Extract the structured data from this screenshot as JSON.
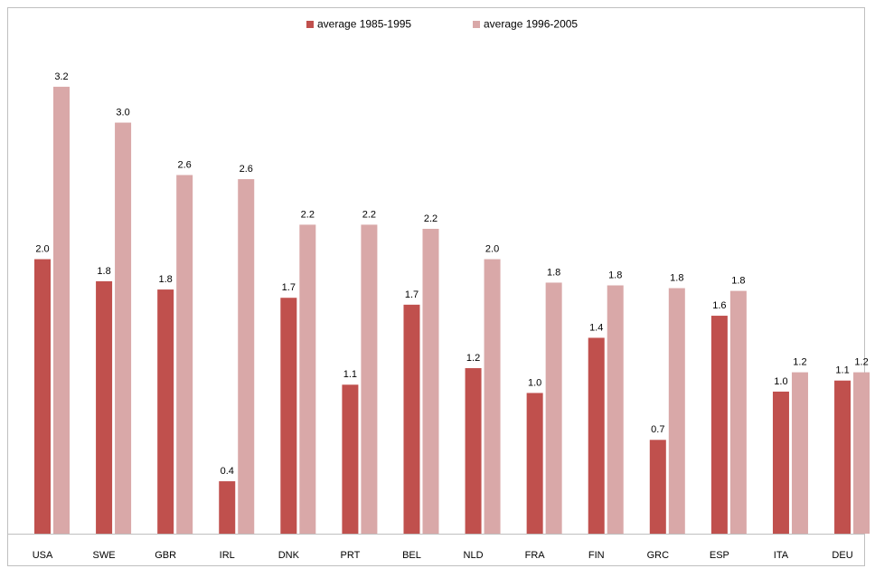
{
  "chart_data": {
    "type": "bar",
    "categories": [
      "USA",
      "SWE",
      "GBR",
      "IRL",
      "DNK",
      "PRT",
      "BEL",
      "NLD",
      "FRA",
      "FIN",
      "GRC",
      "ESP",
      "ITA",
      "DEU"
    ],
    "series": [
      {
        "name": "average 1985-1995",
        "color": "#c0504d",
        "values": [
          1.99,
          1.83,
          1.77,
          0.38,
          1.71,
          1.08,
          1.66,
          1.2,
          1.02,
          1.42,
          0.68,
          1.58,
          1.03,
          1.11
        ],
        "value_labels": [
          "2.0",
          "1.8",
          "1.8",
          "0.4",
          "1.7",
          "1.1",
          "1.7",
          "1.2",
          "1.0",
          "1.4",
          "0.7",
          "1.6",
          "1.0",
          "1.1"
        ]
      },
      {
        "name": "average 1996-2005",
        "color": "#d9a8a8",
        "values": [
          3.24,
          2.98,
          2.6,
          2.57,
          2.24,
          2.24,
          2.21,
          1.99,
          1.82,
          1.8,
          1.78,
          1.76,
          1.17,
          1.17
        ],
        "value_labels": [
          "3.2",
          "3.0",
          "2.6",
          "2.6",
          "2.2",
          "2.2",
          "2.2",
          "2.0",
          "1.8",
          "1.8",
          "1.8",
          "1.8",
          "1.2",
          "1.2"
        ]
      }
    ],
    "ylim": [
      0,
      3.4
    ],
    "legend": "top"
  }
}
